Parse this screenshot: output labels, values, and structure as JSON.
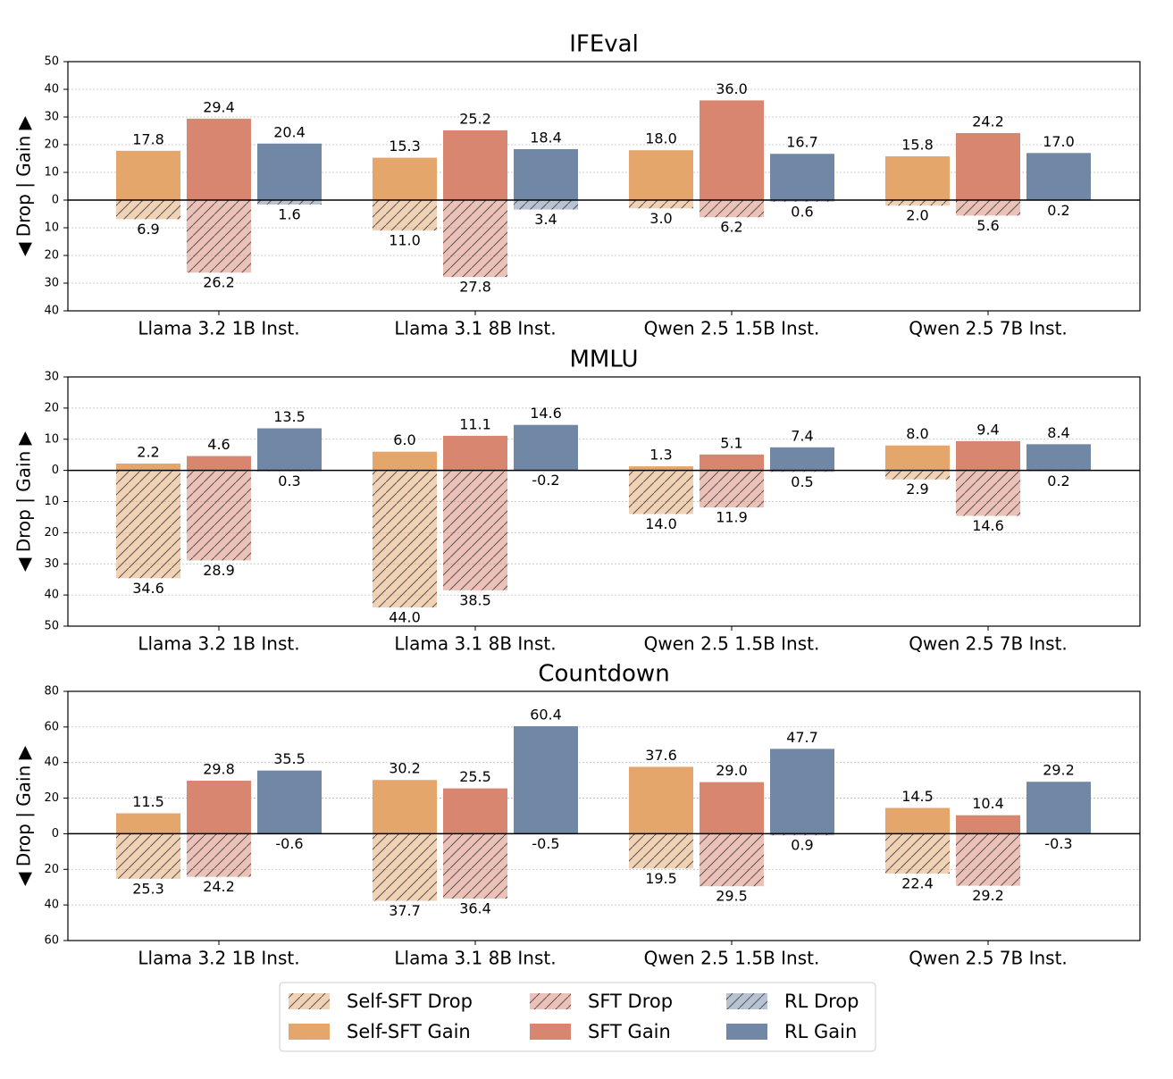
{
  "chart_data": [
    {
      "type": "bar",
      "title": "IFEval",
      "ylabel": "◀ Drop | Gain ▶",
      "categories": [
        "Llama 3.2 1B Inst.",
        "Llama 3.1 8B Inst.",
        "Qwen 2.5 1.5B Inst.",
        "Qwen 2.5 7B Inst."
      ],
      "ylim": [
        -40,
        50
      ],
      "yticks": [
        {
          "value": -40,
          "label": "40"
        },
        {
          "value": -30,
          "label": "30"
        },
        {
          "value": -20,
          "label": "20"
        },
        {
          "value": -10,
          "label": "10"
        },
        0,
        10,
        20,
        30,
        40,
        50
      ],
      "grid": true,
      "series": [
        {
          "values": [
            17.8,
            15.3,
            18.0,
            15.8
          ],
          "value_labels": [
            "17.8",
            "15.3",
            "18.0",
            "15.8"
          ],
          "drops": [
            6.9,
            11.0,
            3.0,
            2.0
          ],
          "drop_labels": [
            "6.9",
            "11.0",
            "3.0",
            "2.0"
          ]
        },
        {
          "values": [
            29.4,
            25.2,
            36.0,
            24.2
          ],
          "value_labels": [
            "29.4",
            "25.2",
            "36.0",
            "24.2"
          ],
          "drops": [
            26.2,
            27.8,
            6.2,
            5.6
          ],
          "drop_labels": [
            "26.2",
            "27.8",
            "6.2",
            "5.6"
          ]
        },
        {
          "values": [
            20.4,
            18.4,
            16.7,
            17.0
          ],
          "value_labels": [
            "20.4",
            "18.4",
            "16.7",
            "17.0"
          ],
          "drops": [
            1.6,
            3.4,
            0.6,
            0.2
          ],
          "drop_labels": [
            "1.6",
            "3.4",
            "0.6",
            "0.2"
          ]
        }
      ]
    },
    {
      "type": "bar",
      "title": "MMLU",
      "ylabel": "◀ Drop | Gain ▶",
      "categories": [
        "Llama 3.2 1B Inst.",
        "Llama 3.1 8B Inst.",
        "Qwen 2.5 1.5B Inst.",
        "Qwen 2.5 7B Inst."
      ],
      "ylim": [
        -50,
        30
      ],
      "yticks": [
        {
          "value": -50,
          "label": "50"
        },
        {
          "value": -40,
          "label": "40"
        },
        {
          "value": -30,
          "label": "30"
        },
        {
          "value": -20,
          "label": "20"
        },
        {
          "value": -10,
          "label": "10"
        },
        0,
        10,
        20,
        30
      ],
      "grid": true,
      "series": [
        {
          "values": [
            2.2,
            6.0,
            1.3,
            8.0
          ],
          "value_labels": [
            "2.2",
            "6.0",
            "1.3",
            "8.0"
          ],
          "drops": [
            34.6,
            44.0,
            14.0,
            2.9
          ],
          "drop_labels": [
            "34.6",
            "44.0",
            "14.0",
            "2.9"
          ]
        },
        {
          "values": [
            4.6,
            11.1,
            5.1,
            9.4
          ],
          "value_labels": [
            "4.6",
            "11.1",
            "5.1",
            "9.4"
          ],
          "drops": [
            28.9,
            38.5,
            11.9,
            14.6
          ],
          "drop_labels": [
            "28.9",
            "38.5",
            "11.9",
            "14.6"
          ]
        },
        {
          "values": [
            13.5,
            14.6,
            7.4,
            8.4
          ],
          "value_labels": [
            "13.5",
            "14.6",
            "7.4",
            "8.4"
          ],
          "drops": [
            0.3,
            -0.2,
            0.5,
            0.2
          ],
          "drop_labels": [
            "0.3",
            "-0.2",
            "0.5",
            "0.2"
          ]
        }
      ]
    },
    {
      "type": "bar",
      "title": "Countdown",
      "ylabel": "◀ Drop | Gain ▶",
      "categories": [
        "Llama 3.2 1B Inst.",
        "Llama 3.1 8B Inst.",
        "Qwen 2.5 1.5B Inst.",
        "Qwen 2.5 7B Inst."
      ],
      "ylim": [
        -60,
        80
      ],
      "yticks": [
        {
          "value": -60,
          "label": "60"
        },
        {
          "value": -40,
          "label": "40"
        },
        {
          "value": -20,
          "label": "20"
        },
        0,
        20,
        40,
        60,
        80
      ],
      "grid": true,
      "series": [
        {
          "values": [
            11.5,
            30.2,
            37.6,
            14.5
          ],
          "value_labels": [
            "11.5",
            "30.2",
            "37.6",
            "14.5"
          ],
          "drops": [
            25.3,
            37.7,
            19.5,
            22.4
          ],
          "drop_labels": [
            "25.3",
            "37.7",
            "19.5",
            "22.4"
          ]
        },
        {
          "values": [
            29.8,
            25.5,
            29.0,
            10.4
          ],
          "value_labels": [
            "29.8",
            "25.5",
            "29.0",
            "10.4"
          ],
          "drops": [
            24.2,
            36.4,
            29.5,
            29.2
          ],
          "drop_labels": [
            "24.2",
            "36.4",
            "29.5",
            "29.2"
          ]
        },
        {
          "values": [
            35.5,
            60.4,
            47.7,
            29.2
          ],
          "value_labels": [
            "35.5",
            "60.4",
            "47.7",
            "29.2"
          ],
          "drops": [
            -0.6,
            -0.5,
            0.9,
            -0.3
          ],
          "drop_labels": [
            "-0.6",
            "-0.5",
            "0.9",
            "-0.3"
          ]
        }
      ]
    }
  ],
  "legend": {
    "position": "lower center",
    "entries": [
      {
        "name": "Self-SFT Drop",
        "color": "#e5a66b",
        "hatch": true
      },
      {
        "name": "Self-SFT Gain",
        "color": "#e5a66b",
        "hatch": false
      },
      {
        "name": "SFT Drop",
        "color": "#d98671",
        "hatch": true
      },
      {
        "name": "SFT Gain",
        "color": "#d98671",
        "hatch": false
      },
      {
        "name": "RL Drop",
        "color": "#7087a6",
        "hatch": true
      },
      {
        "name": "RL Gain",
        "color": "#7087a6",
        "hatch": false
      }
    ]
  }
}
